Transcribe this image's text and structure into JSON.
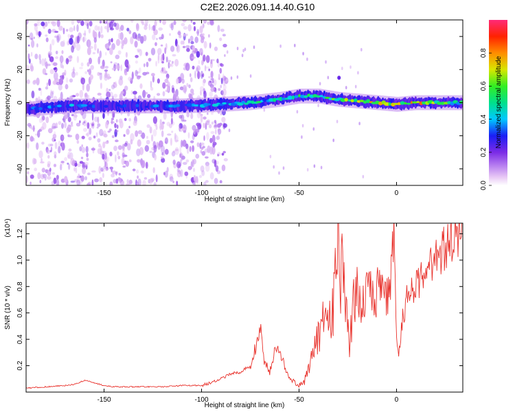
{
  "title": "C2E2.2026.091.14.40.G10",
  "colors": {
    "snr_line": "#e8302a",
    "frame": "#000000",
    "background": "#ffffff"
  },
  "chart_data": [
    {
      "type": "heatmap",
      "title": "C2E2.2026.091.14.40.G10",
      "xlabel": "Height of straight line (km)",
      "ylabel": "Frequency (Hz)",
      "xlim": [
        -190,
        34
      ],
      "ylim": [
        -50,
        50
      ],
      "x_ticks": [
        -150,
        -100,
        -50,
        0
      ],
      "y_ticks": [
        -40,
        -20,
        0,
        20,
        40
      ],
      "grid": false,
      "colorbar": {
        "label": "Normalized spectral amplitude",
        "range": [
          0,
          1
        ],
        "ticks": [
          0.0,
          0.2,
          0.4,
          0.6,
          0.8
        ],
        "tick_labels": [
          "0.0",
          "0.2",
          "0.4",
          "0.6",
          "0.8"
        ],
        "colormap": "rainbow (white → magenta/purple → blue → cyan → green → yellow → orange → red → pink)"
      },
      "ridge_centerline": {
        "description": "strong spectral ridge near 0 Hz, drifting from about -5 Hz at the left to about +5 Hz near -50 km, then back to ~0 Hz",
        "x": [
          -190,
          -170,
          -150,
          -130,
          -110,
          -90,
          -75,
          -60,
          -50,
          -40,
          -30,
          -20,
          -10,
          0,
          10,
          20,
          34
        ],
        "freq_hz": [
          -4,
          -2,
          -2,
          -2,
          -2,
          -1,
          0,
          2,
          4,
          4,
          2,
          1,
          0,
          -1,
          0,
          0,
          0
        ],
        "peak_amplitude": [
          0.35,
          0.45,
          0.35,
          0.4,
          0.4,
          0.45,
          0.55,
          0.55,
          0.6,
          0.6,
          0.7,
          0.9,
          0.95,
          0.85,
          0.9,
          0.7,
          0.6
        ]
      },
      "scatter_region": {
        "description": "diffuse low-amplitude (purple) scatter across all frequencies for heights below about -95 km",
        "x_range": [
          -190,
          -95
        ],
        "amplitude_range": [
          0.05,
          0.25
        ]
      }
    },
    {
      "type": "line",
      "title": "",
      "xlabel": "Height of straight line (km)",
      "ylabel": "SNR (10 * v/v)",
      "y_multiplier_label": "(x10⁴)",
      "xlim": [
        -190,
        34
      ],
      "ylim": [
        0,
        1.28
      ],
      "x_ticks": [
        -150,
        -100,
        -50,
        0
      ],
      "y_ticks": [
        0.2,
        0.4,
        0.6,
        0.8,
        1.0,
        1.2
      ],
      "grid": false,
      "series": [
        {
          "color": "#e8302a",
          "x": [
            -190,
            -180,
            -170,
            -165,
            -160,
            -150,
            -145,
            -140,
            -130,
            -120,
            -110,
            -100,
            -95,
            -90,
            -85,
            -80,
            -75,
            -72,
            -70,
            -68,
            -65,
            -62,
            -60,
            -55,
            -50,
            -47,
            -45,
            -42,
            -40,
            -37,
            -35,
            -32,
            -30,
            -29,
            -28,
            -26,
            -24,
            -22,
            -20,
            -18,
            -15,
            -12,
            -10,
            -8,
            -5,
            -3,
            -1,
            0,
            1,
            3,
            5,
            10,
            15,
            20,
            25,
            30,
            34
          ],
          "y": [
            0.03,
            0.04,
            0.05,
            0.06,
            0.09,
            0.05,
            0.04,
            0.04,
            0.04,
            0.04,
            0.05,
            0.05,
            0.07,
            0.1,
            0.14,
            0.15,
            0.2,
            0.35,
            0.5,
            0.25,
            0.15,
            0.35,
            0.3,
            0.1,
            0.06,
            0.07,
            0.2,
            0.35,
            0.4,
            0.55,
            0.45,
            0.7,
            1.1,
            0.6,
            0.95,
            0.55,
            0.4,
            0.65,
            0.75,
            0.6,
            0.85,
            0.7,
            0.75,
            0.85,
            0.7,
            0.9,
            1.18,
            0.5,
            0.25,
            0.55,
            0.7,
            0.8,
            0.9,
            1.0,
            1.1,
            1.15,
            1.22
          ]
        }
      ]
    }
  ]
}
